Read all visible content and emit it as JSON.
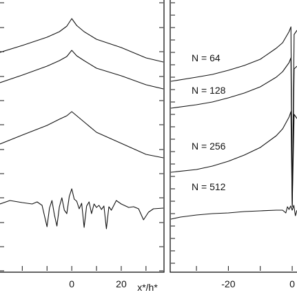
{
  "chart_data": [
    {
      "type": "line",
      "panel": "left",
      "xlabel": "x*/h*",
      "ylabel": "",
      "x_tick_labels": [
        "0",
        "20"
      ],
      "xlim": [
        -29,
        37
      ],
      "grid": false,
      "legend": "none",
      "series": [
        {
          "x": [
            -29,
            -20,
            -10,
            -5,
            -2,
            0,
            2,
            5,
            10,
            20,
            30,
            37
          ],
          "y": [
            76,
            66,
            54,
            46,
            38,
            27,
            37,
            46,
            57,
            69,
            84,
            90
          ]
        },
        {
          "x": [
            -29,
            -20,
            -10,
            -5,
            -2,
            0,
            2,
            5,
            10,
            20,
            30,
            37
          ],
          "y": [
            120,
            109,
            96,
            88,
            82,
            73,
            81,
            88,
            99,
            110,
            123,
            129
          ]
        },
        {
          "x": [
            -29,
            -20,
            -10,
            -5,
            -2,
            0,
            2,
            5,
            10,
            20,
            30,
            37
          ],
          "y": [
            209,
            196,
            182,
            173,
            168,
            162,
            168,
            177,
            192,
            208,
            224,
            229
          ]
        },
        {
          "x": [
            -29,
            -25,
            -20,
            -16,
            -14,
            -12,
            -10,
            -9,
            -8,
            -7,
            -6,
            -5,
            -4,
            -3,
            -2,
            -1,
            0,
            1,
            2,
            3,
            4,
            5,
            6,
            7,
            8,
            9,
            10,
            11,
            12,
            13,
            14,
            15,
            16,
            18,
            20,
            23,
            25,
            27,
            29,
            31,
            33,
            37
          ],
          "y": [
            296,
            291,
            294,
            296,
            293,
            298,
            329,
            302,
            291,
            312,
            328,
            300,
            287,
            305,
            310,
            285,
            274,
            289,
            292,
            303,
            295,
            330,
            299,
            293,
            310,
            296,
            301,
            298,
            304,
            299,
            332,
            300,
            305,
            291,
            296,
            301,
            300,
            303,
            319,
            308,
            303,
            302
          ]
        }
      ]
    },
    {
      "type": "line",
      "panel": "right",
      "xlabel": "",
      "ylabel": "",
      "x_tick_labels": [
        "-20",
        "0"
      ],
      "xlim": [
        -38,
        1.5
      ],
      "grid": false,
      "legend": "inline labels",
      "series": [
        {
          "name": "N = 64",
          "x": [
            -38,
            -30,
            -25,
            -20,
            -15,
            -10,
            -5,
            -3,
            -1,
            -0.4,
            0,
            0.6,
            1.5
          ],
          "y": [
            118,
            112,
            108,
            102,
            95,
            86,
            70,
            62,
            46,
            39,
            300,
            50,
            44
          ]
        },
        {
          "name": "N = 128",
          "x": [
            -38,
            -30,
            -25,
            -20,
            -15,
            -10,
            -5,
            -3,
            -1,
            -0.4,
            0,
            0.6,
            1.5
          ],
          "y": [
            157,
            152,
            148,
            142,
            135,
            126,
            112,
            104,
            91,
            84,
            300,
            100,
            96
          ]
        },
        {
          "name": "N = 256",
          "x": [
            -38,
            -30,
            -25,
            -20,
            -15,
            -10,
            -5,
            -3,
            -1,
            -0.4,
            0,
            0.6,
            1.5
          ],
          "y": [
            250,
            246,
            241,
            234,
            225,
            214,
            197,
            187,
            170,
            162,
            300,
            166,
            172
          ]
        },
        {
          "name": "N = 512",
          "x": [
            -38,
            -35,
            -30,
            -25,
            -20,
            -15,
            -10,
            -5,
            -3,
            -2,
            -1.5,
            -1,
            -0.5,
            0,
            0.5,
            1,
            1.5
          ],
          "y": [
            318,
            315,
            312,
            310,
            309,
            307,
            306,
            305,
            305,
            309,
            300,
            304,
            299,
            305,
            298,
            313,
            305
          ]
        }
      ]
    }
  ]
}
